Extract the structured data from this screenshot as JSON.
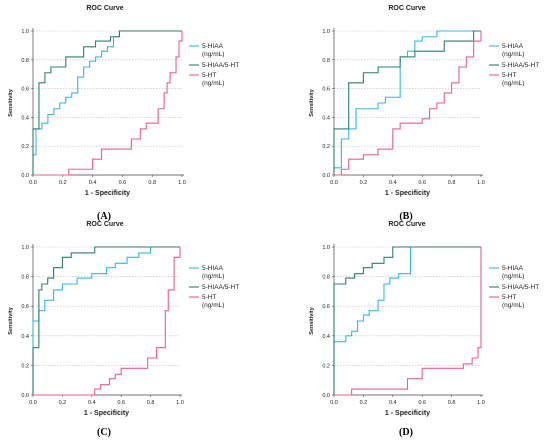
{
  "colors": {
    "hiaa": "#35b6e4",
    "ratio": "#2f7f6e",
    "ht": "#e5618a",
    "grid": "#b9b9b9",
    "axis": "#444444"
  },
  "chart_data": [
    {
      "type": "line",
      "panel_label": "(A)",
      "title": "ROC Curve",
      "xlabel": "1 - Specificity",
      "ylabel": "Sensitivity",
      "xlim": [
        0,
        1
      ],
      "ylim": [
        0,
        1
      ],
      "xticks": [
        "0.0",
        "0.2",
        "0.4",
        "0.6",
        "0.8",
        "1.0"
      ],
      "yticks": [
        "0.0",
        "0.2",
        "0.4",
        "0.6",
        "0.8",
        "1.0"
      ],
      "grid": true,
      "legend": "right",
      "series": [
        {
          "name": "5-HIAA (ng/mL)",
          "color": "#35b6e4",
          "x": [
            0,
            0,
            0.02,
            0.02,
            0.06,
            0.06,
            0.1,
            0.1,
            0.14,
            0.14,
            0.18,
            0.18,
            0.22,
            0.22,
            0.26,
            0.26,
            0.3,
            0.3,
            0.34,
            0.34,
            0.38,
            0.38,
            0.42,
            0.42,
            0.46,
            0.46,
            0.5,
            0.5,
            0.54,
            0.54,
            0.58,
            0.58,
            1
          ],
          "y": [
            0,
            0.14,
            0.14,
            0.32,
            0.32,
            0.36,
            0.36,
            0.42,
            0.42,
            0.46,
            0.46,
            0.5,
            0.5,
            0.54,
            0.54,
            0.57,
            0.57,
            0.68,
            0.68,
            0.75,
            0.75,
            0.79,
            0.79,
            0.82,
            0.82,
            0.86,
            0.86,
            0.89,
            0.89,
            0.96,
            0.96,
            1,
            1
          ]
        },
        {
          "name": "5-HIAA/5-HT",
          "color": "#2f7f6e",
          "x": [
            0,
            0,
            0.04,
            0.04,
            0.08,
            0.08,
            0.12,
            0.12,
            0.22,
            0.22,
            0.34,
            0.34,
            0.42,
            0.42,
            0.52,
            0.52,
            0.58,
            0.58,
            1
          ],
          "y": [
            0,
            0.32,
            0.32,
            0.64,
            0.64,
            0.71,
            0.71,
            0.75,
            0.75,
            0.82,
            0.82,
            0.89,
            0.89,
            0.93,
            0.93,
            0.96,
            0.96,
            1,
            1
          ]
        },
        {
          "name": "5-HT (ng/mL)",
          "color": "#e5618a",
          "x": [
            0,
            0.24,
            0.24,
            0.4,
            0.4,
            0.46,
            0.46,
            0.66,
            0.66,
            0.72,
            0.72,
            0.76,
            0.76,
            0.84,
            0.84,
            0.88,
            0.88,
            0.9,
            0.9,
            0.92,
            0.92,
            0.96,
            0.96,
            0.98,
            0.98,
            1,
            1
          ],
          "y": [
            0,
            0,
            0.04,
            0.04,
            0.11,
            0.11,
            0.18,
            0.18,
            0.25,
            0.25,
            0.32,
            0.32,
            0.36,
            0.36,
            0.46,
            0.46,
            0.57,
            0.57,
            0.64,
            0.64,
            0.71,
            0.71,
            0.82,
            0.82,
            0.93,
            0.93,
            1
          ]
        }
      ]
    },
    {
      "type": "line",
      "panel_label": "(B)",
      "title": "ROC Curve",
      "xlabel": "1 - Specificity",
      "ylabel": "Sensitivity",
      "xlim": [
        0,
        1
      ],
      "ylim": [
        0,
        1
      ],
      "xticks": [
        "0.0",
        "0.2",
        "0.4",
        "0.6",
        "0.8",
        "1.0"
      ],
      "yticks": [
        "0.0",
        "0.2",
        "0.4",
        "0.6",
        "0.8",
        "1.0"
      ],
      "grid": true,
      "legend": "right",
      "series": [
        {
          "name": "5-HIAA (ng/mL)",
          "color": "#35b6e4",
          "x": [
            0,
            0,
            0.05,
            0.05,
            0.1,
            0.1,
            0.15,
            0.15,
            0.3,
            0.3,
            0.35,
            0.35,
            0.45,
            0.45,
            0.5,
            0.5,
            0.55,
            0.55,
            0.6,
            0.6,
            0.7,
            0.7,
            1
          ],
          "y": [
            0,
            0.05,
            0.05,
            0.25,
            0.25,
            0.32,
            0.32,
            0.46,
            0.46,
            0.5,
            0.5,
            0.54,
            0.54,
            0.82,
            0.82,
            0.86,
            0.86,
            0.93,
            0.93,
            0.96,
            0.96,
            1,
            1
          ]
        },
        {
          "name": "5-HIAA/5-HT",
          "color": "#2f7f6e",
          "x": [
            0,
            0,
            0.1,
            0.1,
            0.2,
            0.2,
            0.3,
            0.3,
            0.45,
            0.45,
            0.55,
            0.55,
            0.75,
            0.75,
            0.95,
            0.95,
            1
          ],
          "y": [
            0,
            0.32,
            0.32,
            0.64,
            0.64,
            0.71,
            0.71,
            0.75,
            0.75,
            0.82,
            0.82,
            0.86,
            0.86,
            0.93,
            0.93,
            1,
            1
          ]
        },
        {
          "name": "5-HT (ng/mL)",
          "color": "#e5618a",
          "x": [
            0,
            0.05,
            0.05,
            0.1,
            0.1,
            0.2,
            0.2,
            0.3,
            0.3,
            0.4,
            0.4,
            0.45,
            0.45,
            0.6,
            0.6,
            0.65,
            0.65,
            0.7,
            0.7,
            0.75,
            0.75,
            0.8,
            0.8,
            0.85,
            0.85,
            0.9,
            0.9,
            0.95,
            0.95,
            1,
            1
          ],
          "y": [
            0,
            0,
            0.04,
            0.04,
            0.11,
            0.11,
            0.14,
            0.14,
            0.18,
            0.18,
            0.32,
            0.32,
            0.36,
            0.36,
            0.39,
            0.39,
            0.46,
            0.46,
            0.5,
            0.5,
            0.57,
            0.57,
            0.64,
            0.64,
            0.75,
            0.75,
            0.82,
            0.82,
            0.93,
            0.93,
            1
          ]
        }
      ]
    },
    {
      "type": "line",
      "panel_label": "(C)",
      "title": "ROC Curve",
      "xlabel": "1 - Specificity",
      "ylabel": "Sensitivity",
      "xlim": [
        0,
        1
      ],
      "ylim": [
        0,
        1
      ],
      "xticks": [
        "0.0",
        "0.2",
        "0.4",
        "0.6",
        "0.8",
        "1.0"
      ],
      "yticks": [
        "0.0",
        "0.2",
        "0.4",
        "0.6",
        "0.8",
        "1.0"
      ],
      "grid": true,
      "legend": "right",
      "series": [
        {
          "name": "5-HIAA (ng/mL)",
          "color": "#35b6e4",
          "x": [
            0,
            0,
            0.04,
            0.04,
            0.08,
            0.08,
            0.14,
            0.14,
            0.2,
            0.2,
            0.3,
            0.3,
            0.4,
            0.4,
            0.5,
            0.5,
            0.56,
            0.56,
            0.64,
            0.64,
            0.72,
            0.72,
            0.8,
            0.8,
            1
          ],
          "y": [
            0,
            0.5,
            0.5,
            0.57,
            0.57,
            0.64,
            0.64,
            0.71,
            0.71,
            0.75,
            0.75,
            0.79,
            0.79,
            0.82,
            0.82,
            0.86,
            0.86,
            0.89,
            0.89,
            0.93,
            0.93,
            0.96,
            0.96,
            1,
            1
          ]
        },
        {
          "name": "5-HIAA/5-HT",
          "color": "#2f7f6e",
          "x": [
            0,
            0,
            0.04,
            0.04,
            0.06,
            0.06,
            0.1,
            0.1,
            0.14,
            0.14,
            0.2,
            0.2,
            0.26,
            0.26,
            0.42,
            0.42,
            1
          ],
          "y": [
            0,
            0.32,
            0.32,
            0.71,
            0.71,
            0.75,
            0.75,
            0.79,
            0.79,
            0.86,
            0.86,
            0.93,
            0.93,
            0.96,
            0.96,
            1,
            1
          ]
        },
        {
          "name": "5-HT (ng/mL)",
          "color": "#e5618a",
          "x": [
            0,
            0.42,
            0.42,
            0.46,
            0.46,
            0.52,
            0.52,
            0.56,
            0.56,
            0.6,
            0.6,
            0.78,
            0.78,
            0.84,
            0.84,
            0.9,
            0.9,
            0.92,
            0.92,
            0.96,
            0.96,
            1,
            1
          ],
          "y": [
            0,
            0,
            0.04,
            0.04,
            0.07,
            0.07,
            0.11,
            0.11,
            0.14,
            0.14,
            0.18,
            0.18,
            0.25,
            0.25,
            0.32,
            0.32,
            0.57,
            0.57,
            0.71,
            0.71,
            0.93,
            0.93,
            1
          ]
        }
      ]
    },
    {
      "type": "line",
      "panel_label": "(D)",
      "title": "ROC Curve",
      "xlabel": "1 - Specificity",
      "ylabel": "Sensitivity",
      "xlim": [
        0,
        1
      ],
      "ylim": [
        0,
        1
      ],
      "xticks": [
        "0.0",
        "0.2",
        "0.4",
        "0.6",
        "0.8",
        "1.0"
      ],
      "yticks": [
        "0.0",
        "0.2",
        "0.4",
        "0.6",
        "0.8",
        "1.0"
      ],
      "grid": true,
      "legend": "right",
      "series": [
        {
          "name": "5-HIAA (ng/mL)",
          "color": "#35b6e4",
          "x": [
            0,
            0,
            0.08,
            0.08,
            0.12,
            0.12,
            0.16,
            0.16,
            0.2,
            0.2,
            0.24,
            0.24,
            0.3,
            0.3,
            0.34,
            0.34,
            0.38,
            0.38,
            0.44,
            0.44,
            0.52,
            0.52,
            1
          ],
          "y": [
            0,
            0.36,
            0.36,
            0.4,
            0.4,
            0.43,
            0.43,
            0.5,
            0.5,
            0.54,
            0.54,
            0.57,
            0.57,
            0.64,
            0.64,
            0.75,
            0.75,
            0.79,
            0.79,
            0.82,
            0.82,
            1,
            1
          ]
        },
        {
          "name": "5-HIAA/5-HT",
          "color": "#2f7f6e",
          "x": [
            0,
            0,
            0.08,
            0.08,
            0.14,
            0.14,
            0.2,
            0.2,
            0.26,
            0.26,
            0.34,
            0.34,
            0.4,
            0.4,
            1
          ],
          "y": [
            0,
            0.75,
            0.75,
            0.79,
            0.79,
            0.82,
            0.82,
            0.86,
            0.86,
            0.89,
            0.89,
            0.93,
            0.93,
            1,
            1
          ]
        },
        {
          "name": "5-HT (ng/mL)",
          "color": "#e5618a",
          "x": [
            0,
            0.12,
            0.12,
            0.5,
            0.5,
            0.6,
            0.6,
            0.88,
            0.88,
            0.94,
            0.94,
            0.98,
            0.98,
            1,
            1
          ],
          "y": [
            0,
            0,
            0.04,
            0.04,
            0.11,
            0.11,
            0.18,
            0.18,
            0.21,
            0.21,
            0.25,
            0.25,
            0.32,
            0.32,
            1
          ]
        }
      ]
    }
  ]
}
